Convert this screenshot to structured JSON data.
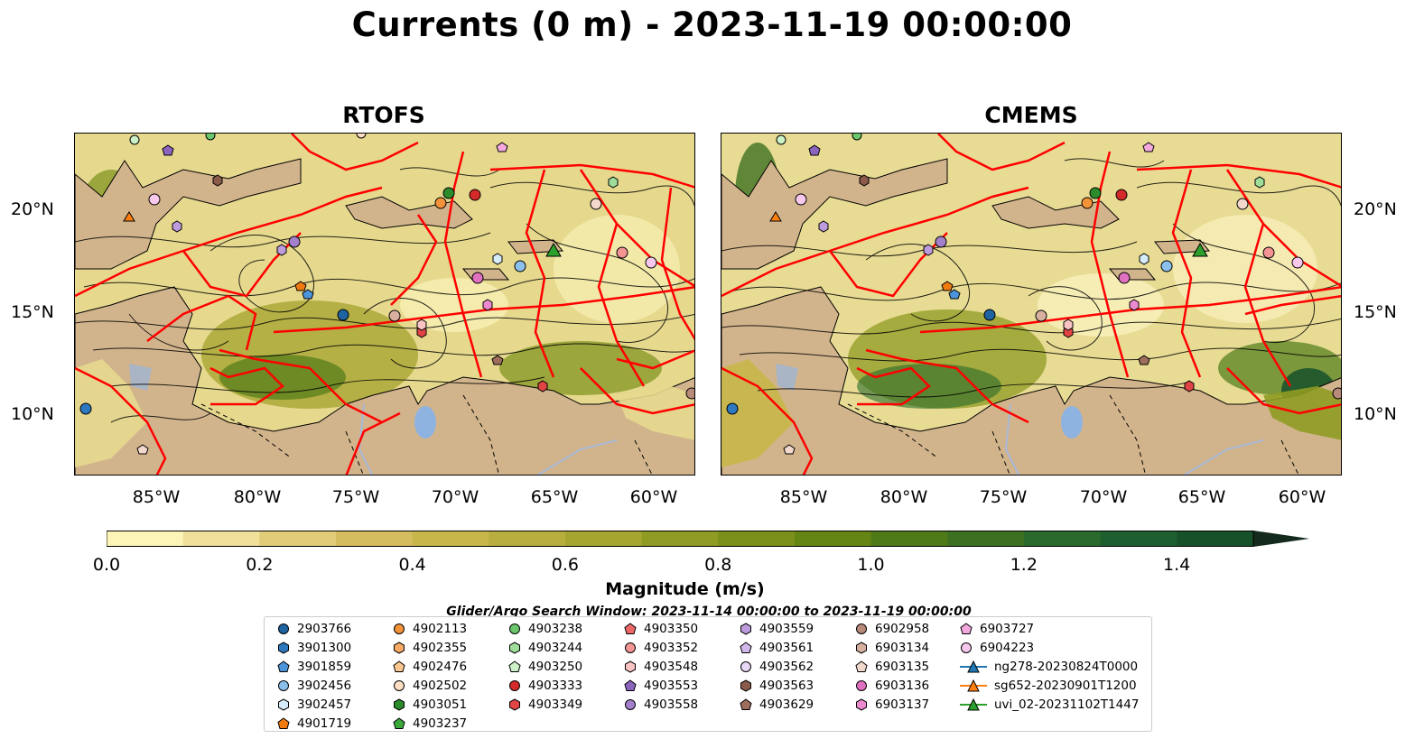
{
  "title": "Currents (0 m) - 2023-11-19 00:00:00",
  "panels": [
    {
      "title": "RTOFS"
    },
    {
      "title": "CMEMS"
    }
  ],
  "axes": {
    "lon_ticks": [
      "85°W",
      "80°W",
      "75°W",
      "70°W",
      "65°W",
      "60°W"
    ],
    "lat_ticks": [
      "20°N",
      "15°N",
      "10°N"
    ]
  },
  "colorbar": {
    "label": "Magnitude (m/s)",
    "ticks": [
      "0.0",
      "0.2",
      "0.4",
      "0.6",
      "0.8",
      "1.0",
      "1.2",
      "1.4"
    ],
    "colors": [
      "#fdf4b8",
      "#f0e09a",
      "#e1cc7a",
      "#d3bd5e",
      "#c7b74a",
      "#b8ae3e",
      "#a6a530",
      "#8f9b22",
      "#7a901a",
      "#648414",
      "#4f7a18",
      "#3d7020",
      "#2a6a2c",
      "#1e5f30",
      "#17512a",
      "#134224",
      "#12341f",
      "#132a1c"
    ]
  },
  "search_window": "Glider/Argo Search Window: 2023-11-14 00:00:00 to 2023-11-19 00:00:00",
  "legend": [
    {
      "label": "2903766",
      "marker": "circle",
      "color": "#1f64a0"
    },
    {
      "label": "3901300",
      "marker": "hexagon",
      "color": "#2e78c0"
    },
    {
      "label": "3901859",
      "marker": "pentagon",
      "color": "#4c94dc"
    },
    {
      "label": "3902456",
      "marker": "circle",
      "color": "#8cc0ec"
    },
    {
      "label": "3902457",
      "marker": "hexagon",
      "color": "#d6ecfb"
    },
    {
      "label": "4901719",
      "marker": "pentagon",
      "color": "#f07a10"
    },
    {
      "label": "4902113",
      "marker": "circle",
      "color": "#f4923a"
    },
    {
      "label": "4902355",
      "marker": "hexagon",
      "color": "#f8aa64"
    },
    {
      "label": "4902476",
      "marker": "pentagon",
      "color": "#fcc690"
    },
    {
      "label": "4902502",
      "marker": "circle",
      "color": "#fde0c4"
    },
    {
      "label": "4903051",
      "marker": "hexagon",
      "color": "#2c8c2c"
    },
    {
      "label": "4903237",
      "marker": "pentagon",
      "color": "#3aa83a"
    },
    {
      "label": "4903238",
      "marker": "circle",
      "color": "#6cc76c"
    },
    {
      "label": "4903244",
      "marker": "hexagon",
      "color": "#9ede9a"
    },
    {
      "label": "4903250",
      "marker": "pentagon",
      "color": "#cdf2c8"
    },
    {
      "label": "4903333",
      "marker": "circle",
      "color": "#d42a2a"
    },
    {
      "label": "4903349",
      "marker": "hexagon",
      "color": "#e04444"
    },
    {
      "label": "4903350",
      "marker": "pentagon",
      "color": "#ec6868"
    },
    {
      "label": "4903352",
      "marker": "circle",
      "color": "#f59494"
    },
    {
      "label": "4903548",
      "marker": "hexagon",
      "color": "#fbc4c4"
    },
    {
      "label": "4903553",
      "marker": "pentagon",
      "color": "#8c64be"
    },
    {
      "label": "4903558",
      "marker": "circle",
      "color": "#a480cc"
    },
    {
      "label": "4903559",
      "marker": "hexagon",
      "color": "#bc9cdc"
    },
    {
      "label": "4903561",
      "marker": "pentagon",
      "color": "#d2b8ea"
    },
    {
      "label": "4903562",
      "marker": "circle",
      "color": "#e8d8f6"
    },
    {
      "label": "4903563",
      "marker": "hexagon",
      "color": "#8a5a4a"
    },
    {
      "label": "4903629",
      "marker": "pentagon",
      "color": "#9e6e5c"
    },
    {
      "label": "6902958",
      "marker": "circle",
      "color": "#b88a7a"
    },
    {
      "label": "6903134",
      "marker": "hexagon",
      "color": "#d8b0a0"
    },
    {
      "label": "6903135",
      "marker": "pentagon",
      "color": "#f2d8cc"
    },
    {
      "label": "6903136",
      "marker": "circle",
      "color": "#e070c0"
    },
    {
      "label": "6903137",
      "marker": "hexagon",
      "color": "#ec8ad0"
    },
    {
      "label": "6903727",
      "marker": "pentagon",
      "color": "#f4a8de"
    },
    {
      "label": "6904223",
      "marker": "circle",
      "color": "#f8c8ec"
    },
    {
      "label": "ng278-20230824T0000",
      "marker": "triangle-line",
      "color": "#1f77b4"
    },
    {
      "label": "sg652-20230901T1200",
      "marker": "triangle-line",
      "color": "#ff7f0e"
    },
    {
      "label": "uvi_02-20231102T1447",
      "marker": "triangle-line",
      "color": "#2ca02c"
    }
  ]
}
